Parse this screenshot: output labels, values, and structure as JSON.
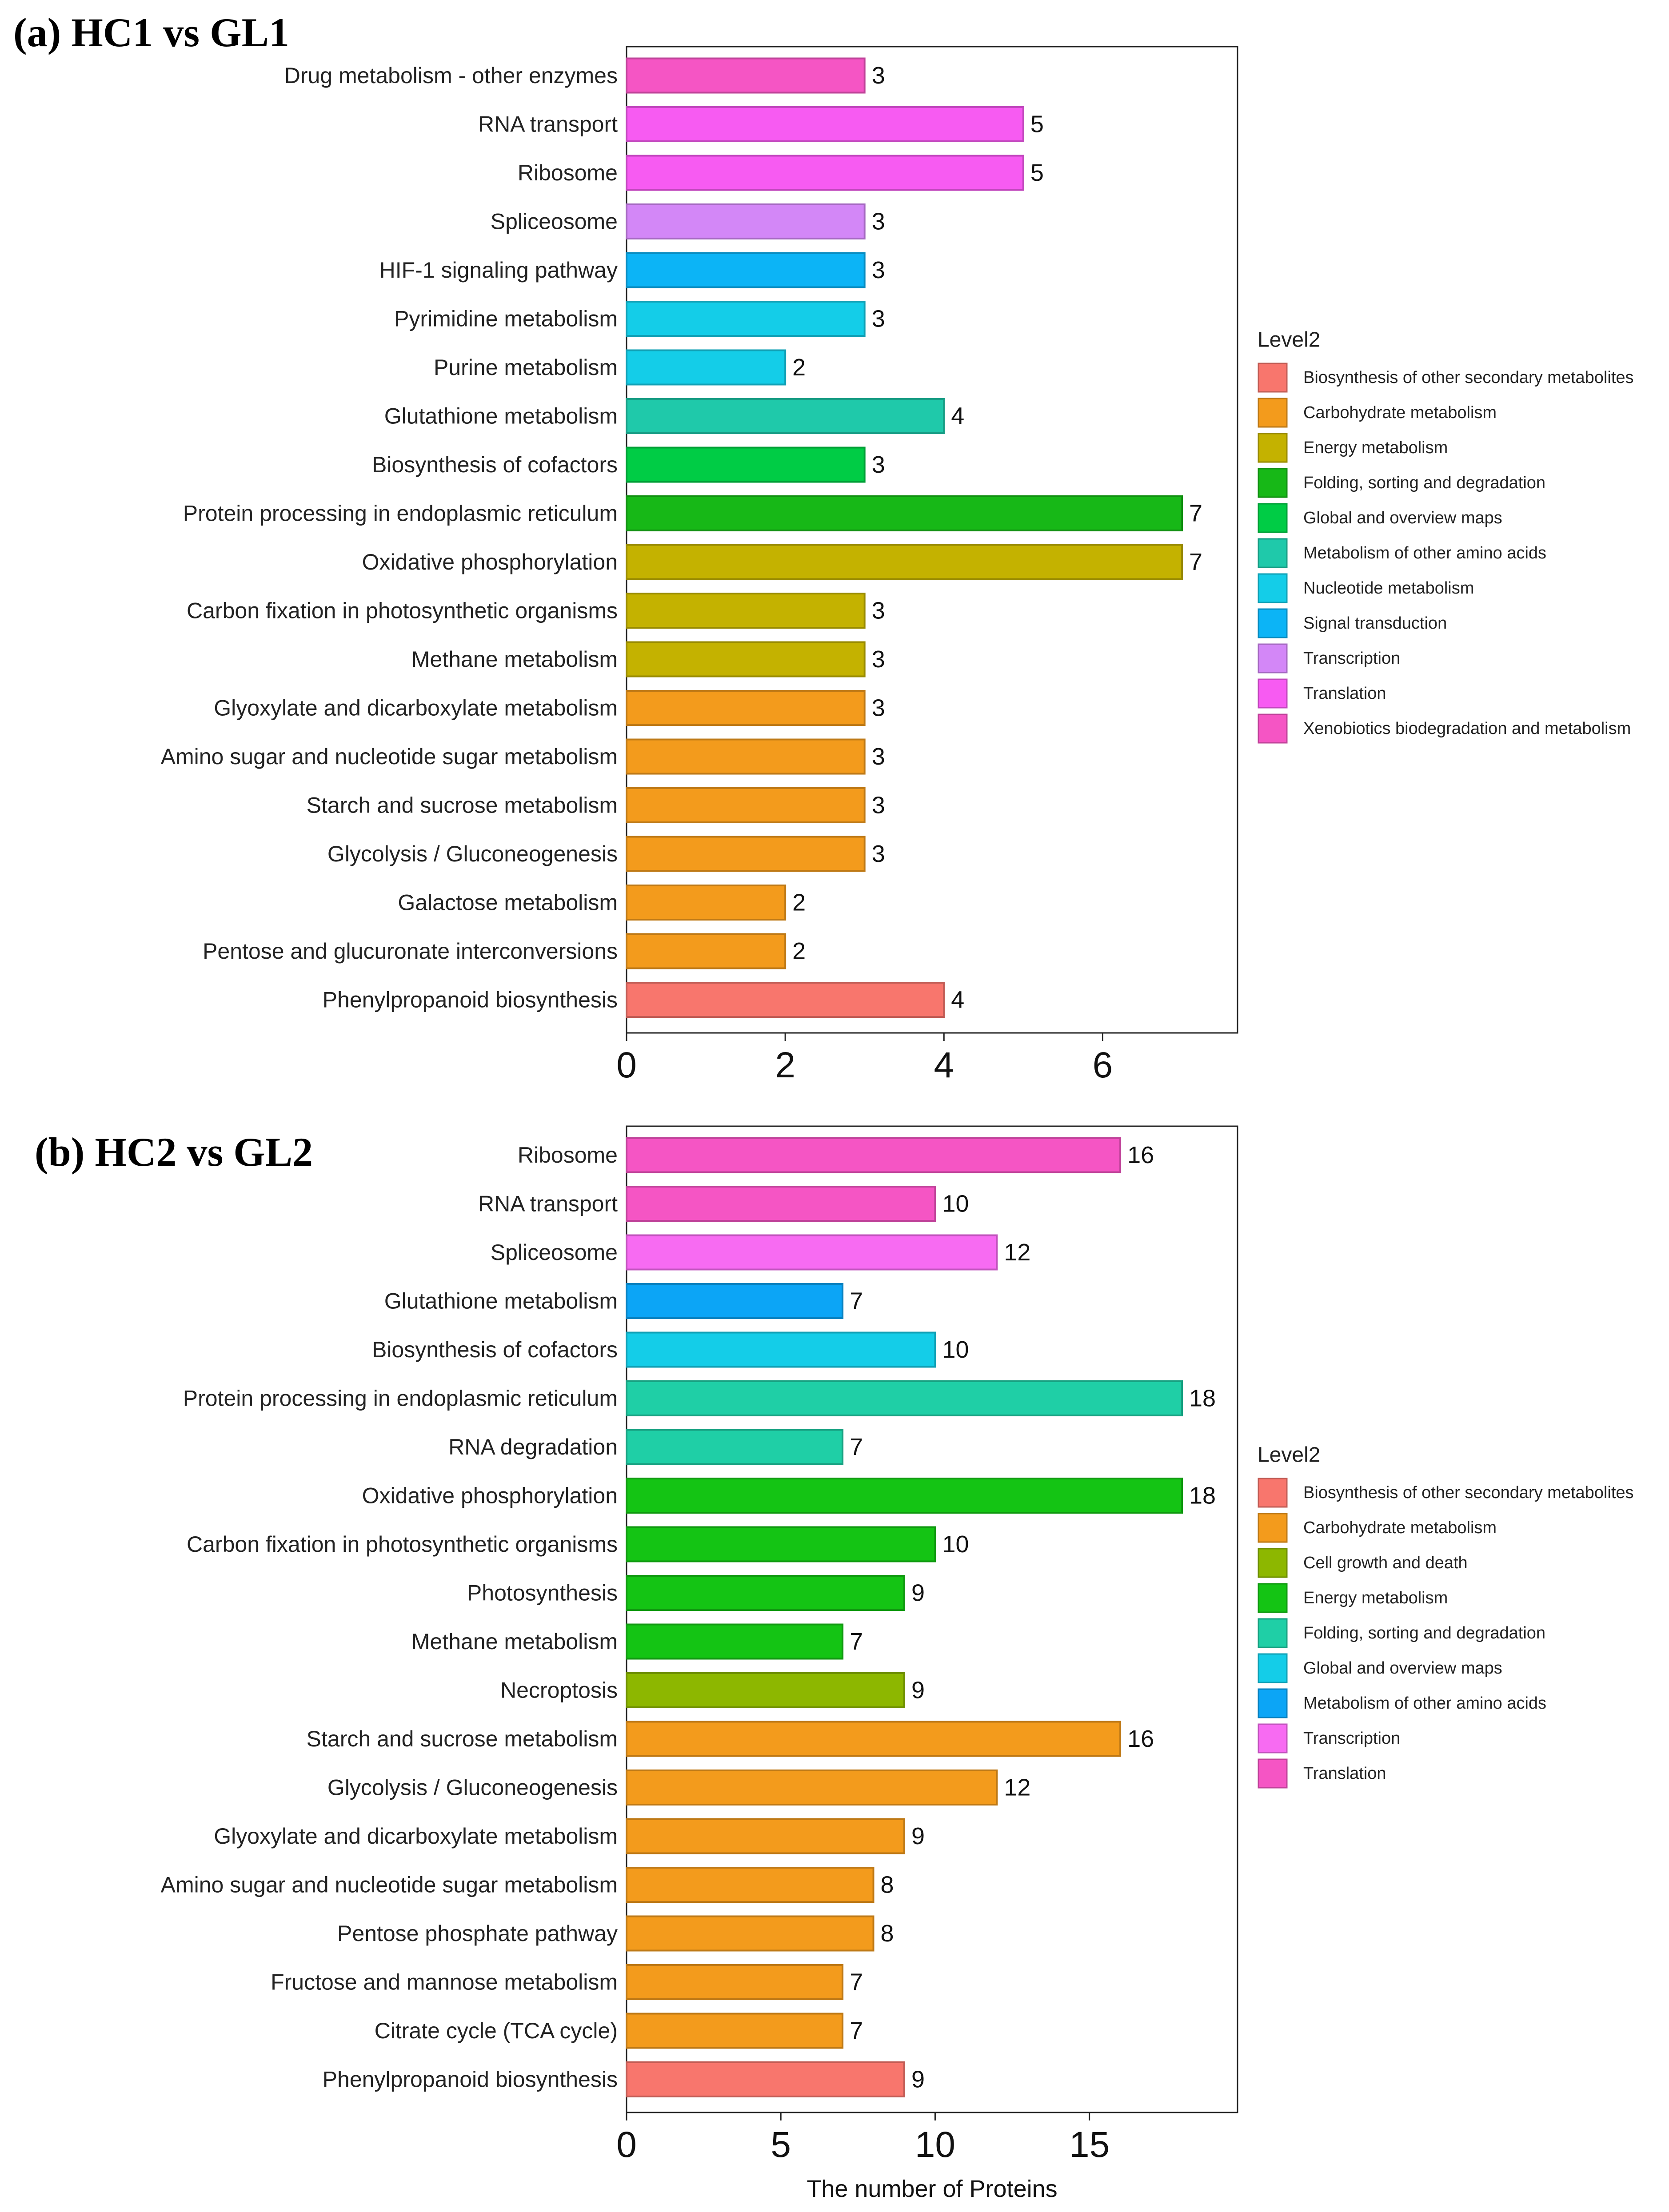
{
  "chart_data": [
    {
      "type": "bar",
      "orientation": "horizontal",
      "panel_label": "(a) HC1 vs GL1",
      "xlabel": "",
      "ylabel": "",
      "xlim": [
        0,
        7.7
      ],
      "xticks": [
        0,
        2,
        4,
        6
      ],
      "grid": false,
      "legend_placement": "right",
      "legend_title": "Level2",
      "legend": [
        {
          "label": "Biosynthesis of other secondary metabolites",
          "color": "#F8766D"
        },
        {
          "label": "Carbohydrate metabolism",
          "color": "#F39B1C"
        },
        {
          "label": "Energy metabolism",
          "color": "#C4B200"
        },
        {
          "label": "Folding, sorting and degradation",
          "color": "#17B817"
        },
        {
          "label": "Global and overview maps",
          "color": "#00CC45"
        },
        {
          "label": "Metabolism of other amino acids",
          "color": "#1FC9AA"
        },
        {
          "label": "Nucleotide metabolism",
          "color": "#14CDE8"
        },
        {
          "label": "Signal transduction",
          "color": "#0CB4F6"
        },
        {
          "label": "Transcription",
          "color": "#D387F7"
        },
        {
          "label": "Translation",
          "color": "#F75BF2"
        },
        {
          "label": "Xenobiotics biodegradation and metabolism",
          "color": "#F555C4"
        }
      ],
      "bars": [
        {
          "label": "Drug metabolism - other enzymes",
          "value": 3,
          "color": "#F555C4"
        },
        {
          "label": "RNA transport",
          "value": 5,
          "color": "#F75BF2"
        },
        {
          "label": "Ribosome",
          "value": 5,
          "color": "#F75BF2"
        },
        {
          "label": "Spliceosome",
          "value": 3,
          "color": "#D387F7"
        },
        {
          "label": "HIF-1 signaling pathway",
          "value": 3,
          "color": "#0CB4F6"
        },
        {
          "label": "Pyrimidine metabolism",
          "value": 3,
          "color": "#14CDE8"
        },
        {
          "label": "Purine metabolism",
          "value": 2,
          "color": "#14CDE8"
        },
        {
          "label": "Glutathione metabolism",
          "value": 4,
          "color": "#1FC9AA"
        },
        {
          "label": "Biosynthesis of cofactors",
          "value": 3,
          "color": "#00CC45"
        },
        {
          "label": "Protein processing in endoplasmic reticulum",
          "value": 7,
          "color": "#17B817"
        },
        {
          "label": "Oxidative phosphorylation",
          "value": 7,
          "color": "#C4B200"
        },
        {
          "label": "Carbon fixation in photosynthetic organisms",
          "value": 3,
          "color": "#C4B200"
        },
        {
          "label": "Methane metabolism",
          "value": 3,
          "color": "#C4B200"
        },
        {
          "label": "Glyoxylate and dicarboxylate metabolism",
          "value": 3,
          "color": "#F39B1C"
        },
        {
          "label": "Amino sugar and nucleotide sugar metabolism",
          "value": 3,
          "color": "#F39B1C"
        },
        {
          "label": "Starch and sucrose metabolism",
          "value": 3,
          "color": "#F39B1C"
        },
        {
          "label": "Glycolysis / Gluconeogenesis",
          "value": 3,
          "color": "#F39B1C"
        },
        {
          "label": "Galactose metabolism",
          "value": 2,
          "color": "#F39B1C"
        },
        {
          "label": "Pentose and glucuronate interconversions",
          "value": 2,
          "color": "#F39B1C"
        },
        {
          "label": "Phenylpropanoid biosynthesis",
          "value": 4,
          "color": "#F8766D"
        }
      ]
    },
    {
      "type": "bar",
      "orientation": "horizontal",
      "panel_label": "(b) HC2 vs GL2",
      "xlabel": "The number of Proteins",
      "ylabel": "",
      "xlim": [
        0,
        19.8
      ],
      "xticks": [
        0,
        5,
        10,
        15
      ],
      "grid": false,
      "legend_placement": "right",
      "legend_title": "Level2",
      "legend": [
        {
          "label": "Biosynthesis of other secondary metabolites",
          "color": "#F8766D"
        },
        {
          "label": "Carbohydrate metabolism",
          "color": "#F39B1C"
        },
        {
          "label": "Cell growth and death",
          "color": "#8DB700"
        },
        {
          "label": "Energy metabolism",
          "color": "#14C414"
        },
        {
          "label": "Folding, sorting and degradation",
          "color": "#1FCFA6"
        },
        {
          "label": "Global and overview maps",
          "color": "#14CDE8"
        },
        {
          "label": "Metabolism of other amino acids",
          "color": "#0CA5F6"
        },
        {
          "label": "Transcription",
          "color": "#F76BF2"
        },
        {
          "label": "Translation",
          "color": "#F555C4"
        }
      ],
      "bars": [
        {
          "label": "Ribosome",
          "value": 16,
          "color": "#F555C4"
        },
        {
          "label": "RNA transport",
          "value": 10,
          "color": "#F555C4"
        },
        {
          "label": "Spliceosome",
          "value": 12,
          "color": "#F76BF2"
        },
        {
          "label": "Glutathione metabolism",
          "value": 7,
          "color": "#0CA5F6"
        },
        {
          "label": "Biosynthesis of cofactors",
          "value": 10,
          "color": "#14CDE8"
        },
        {
          "label": "Protein processing in endoplasmic reticulum",
          "value": 18,
          "color": "#1FCFA6"
        },
        {
          "label": "RNA degradation",
          "value": 7,
          "color": "#1FCFA6"
        },
        {
          "label": "Oxidative phosphorylation",
          "value": 18,
          "color": "#14C414"
        },
        {
          "label": "Carbon fixation in photosynthetic organisms",
          "value": 10,
          "color": "#14C414"
        },
        {
          "label": "Photosynthesis",
          "value": 9,
          "color": "#14C414"
        },
        {
          "label": "Methane metabolism",
          "value": 7,
          "color": "#14C414"
        },
        {
          "label": "Necroptosis",
          "value": 9,
          "color": "#8DB700"
        },
        {
          "label": "Starch and sucrose metabolism",
          "value": 16,
          "color": "#F39B1C"
        },
        {
          "label": "Glycolysis / Gluconeogenesis",
          "value": 12,
          "color": "#F39B1C"
        },
        {
          "label": "Glyoxylate and dicarboxylate metabolism",
          "value": 9,
          "color": "#F39B1C"
        },
        {
          "label": "Amino sugar and nucleotide sugar metabolism",
          "value": 8,
          "color": "#F39B1C"
        },
        {
          "label": "Pentose phosphate pathway",
          "value": 8,
          "color": "#F39B1C"
        },
        {
          "label": "Fructose and mannose metabolism",
          "value": 7,
          "color": "#F39B1C"
        },
        {
          "label": "Citrate cycle (TCA cycle)",
          "value": 7,
          "color": "#F39B1C"
        },
        {
          "label": "Phenylpropanoid biosynthesis",
          "value": 9,
          "color": "#F8766D"
        }
      ]
    }
  ]
}
